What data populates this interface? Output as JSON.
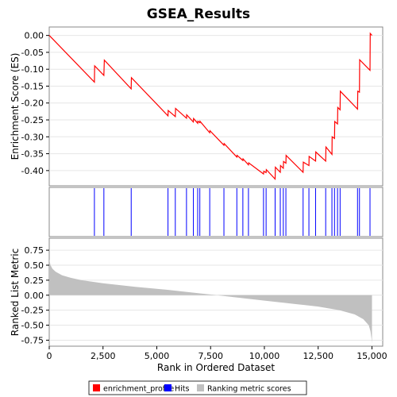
{
  "chart_data": [
    {
      "type": "line",
      "title": "GSEA_Results",
      "ylabel": "Enrichment Score (ES)",
      "xlim": [
        0,
        15500
      ],
      "ylim": [
        -0.445,
        0.025
      ],
      "yticks": [
        0.0,
        -0.05,
        -0.1,
        -0.15,
        -0.2,
        -0.25,
        -0.3,
        -0.35,
        -0.4
      ],
      "ytick_labels": [
        "0.00",
        "-0.05",
        "-0.10",
        "-0.15",
        "-0.20",
        "-0.25",
        "-0.30",
        "-0.35",
        "-0.40"
      ],
      "series": [
        {
          "name": "enrichment_profile",
          "color": "#ff0000",
          "x": [
            0,
            2100,
            2110,
            2540,
            2560,
            3810,
            3820,
            5520,
            5530,
            5860,
            5870,
            6380,
            6390,
            6700,
            6710,
            6900,
            6910,
            7000,
            7010,
            7460,
            7470,
            8120,
            8130,
            8720,
            8730,
            9000,
            9010,
            9260,
            9270,
            9960,
            9970,
            10080,
            10090,
            10500,
            10510,
            10740,
            10750,
            10880,
            10890,
            11000,
            11010,
            11800,
            11810,
            12070,
            12080,
            12380,
            12390,
            12850,
            12860,
            13140,
            13150,
            13260,
            13270,
            13400,
            13410,
            13520,
            13530,
            14330,
            14340,
            14420,
            14430,
            14910,
            14920,
            15000
          ],
          "y": [
            0.0,
            -0.138,
            -0.09,
            -0.118,
            -0.073,
            -0.158,
            -0.125,
            -0.238,
            -0.222,
            -0.24,
            -0.216,
            -0.245,
            -0.235,
            -0.256,
            -0.246,
            -0.26,
            -0.254,
            -0.258,
            -0.254,
            -0.288,
            -0.282,
            -0.325,
            -0.32,
            -0.36,
            -0.355,
            -0.37,
            -0.365,
            -0.383,
            -0.377,
            -0.41,
            -0.402,
            -0.406,
            -0.397,
            -0.425,
            -0.39,
            -0.405,
            -0.385,
            -0.393,
            -0.373,
            -0.378,
            -0.355,
            -0.405,
            -0.375,
            -0.385,
            -0.358,
            -0.372,
            -0.345,
            -0.372,
            -0.33,
            -0.352,
            -0.3,
            -0.305,
            -0.255,
            -0.262,
            -0.213,
            -0.22,
            -0.165,
            -0.218,
            -0.165,
            -0.168,
            -0.072,
            -0.103,
            0.006,
            0.0
          ]
        }
      ]
    },
    {
      "type": "scatter",
      "name": "Hits",
      "color": "#0000ff",
      "xlim": [
        0,
        15500
      ],
      "x": [
        2100,
        2540,
        3810,
        5520,
        5860,
        6380,
        6700,
        6900,
        7000,
        7460,
        8120,
        8720,
        9000,
        9260,
        9960,
        10080,
        10500,
        10740,
        10880,
        11000,
        11800,
        12070,
        12380,
        12850,
        13140,
        13260,
        13400,
        13520,
        14330,
        14420,
        14910
      ]
    },
    {
      "type": "area",
      "ylabel": "Ranked List Metric",
      "xlabel": "Rank in Ordered Dataset",
      "color": "#c0c0c0",
      "xlim": [
        0,
        15500
      ],
      "ylim": [
        -0.85,
        0.95
      ],
      "yticks": [
        0.75,
        0.5,
        0.25,
        0.0,
        -0.25,
        -0.5,
        -0.75
      ],
      "ytick_labels": [
        "0.75",
        "0.50",
        "0.25",
        "0.00",
        "-0.25",
        "-0.50",
        "-0.75"
      ],
      "xticks": [
        0,
        2500,
        5000,
        7500,
        10000,
        12500,
        15000
      ],
      "xtick_labels": [
        "0",
        "2,500",
        "5,000",
        "7,500",
        "10,000",
        "12,500",
        "15,000"
      ],
      "x": [
        0,
        60,
        150,
        300,
        600,
        1000,
        1500,
        2500,
        4000,
        5500,
        7000,
        7800,
        8500,
        10000,
        11500,
        12500,
        13500,
        14200,
        14600,
        14850,
        14930,
        14980,
        15000
      ],
      "y": [
        0.6,
        0.5,
        0.44,
        0.39,
        0.33,
        0.29,
        0.25,
        0.2,
        0.14,
        0.09,
        0.03,
        0.0,
        -0.03,
        -0.09,
        -0.15,
        -0.19,
        -0.25,
        -0.32,
        -0.4,
        -0.5,
        -0.6,
        -0.72,
        -0.8
      ]
    }
  ],
  "legend": {
    "items": [
      {
        "label": "enrichment_profile",
        "color": "#ff0000"
      },
      {
        "label": "Hits",
        "color": "#0000ff"
      },
      {
        "label": "Ranking metric scores",
        "color": "#c0c0c0"
      }
    ]
  }
}
